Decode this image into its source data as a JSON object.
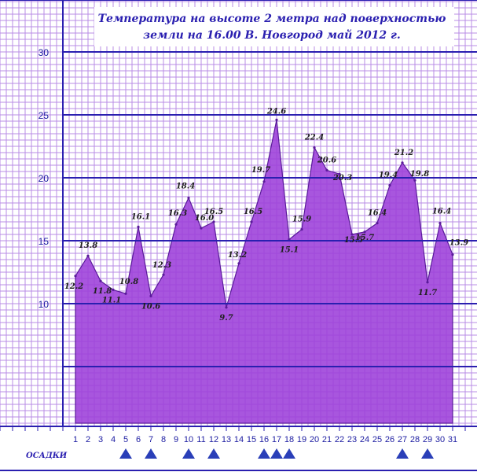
{
  "chart_data": {
    "type": "area",
    "title_line1": "Температура на высоте 2 метра над поверхностью",
    "title_line2": "земли на 16.00 В. Новгород май 2012 г.",
    "ylim": [
      0,
      30
    ],
    "yticks": [
      10,
      15,
      20,
      25,
      30
    ],
    "x": [
      1,
      2,
      3,
      4,
      5,
      6,
      7,
      8,
      9,
      10,
      11,
      12,
      13,
      14,
      15,
      16,
      17,
      18,
      19,
      20,
      21,
      22,
      23,
      24,
      25,
      26,
      27,
      28,
      29,
      30,
      31
    ],
    "values": [
      12.2,
      13.8,
      11.8,
      11.1,
      10.8,
      16.1,
      10.6,
      12.3,
      16.3,
      18.4,
      16.0,
      16.5,
      9.7,
      13.2,
      16.5,
      19.7,
      24.6,
      15.1,
      15.9,
      22.4,
      20.6,
      20.3,
      15.5,
      15.7,
      16.4,
      19.4,
      21.2,
      19.8,
      11.7,
      16.4,
      13.9
    ],
    "labels": [
      "12.2",
      "13.8",
      "11.8",
      "11.1",
      "10.8",
      "16.1",
      "10.6",
      "12.3",
      "16.3",
      "18.4",
      "16.0",
      "16.5",
      "9.7",
      "13.2",
      "16.5",
      "19.7",
      "24.6",
      "15.1",
      "15.9",
      "22.4",
      "20.6",
      "20.3",
      "15.5",
      "15.7",
      "16.4",
      "19.4",
      "21.2",
      "19.8",
      "11.7",
      "16.4",
      "13.9"
    ],
    "precipitation_label": "ОСАДКИ",
    "precipitation_days": [
      5,
      7,
      10,
      12,
      16,
      17,
      18,
      27,
      29
    ],
    "colors": {
      "grid_minor": "#b98ce6",
      "grid_major": "#2a1fb0",
      "area_fill": "#9c3fd9",
      "area_stroke": "#5a1a9a",
      "title_box": "#ffffff",
      "precip_marker": "#2a3fb8"
    }
  }
}
